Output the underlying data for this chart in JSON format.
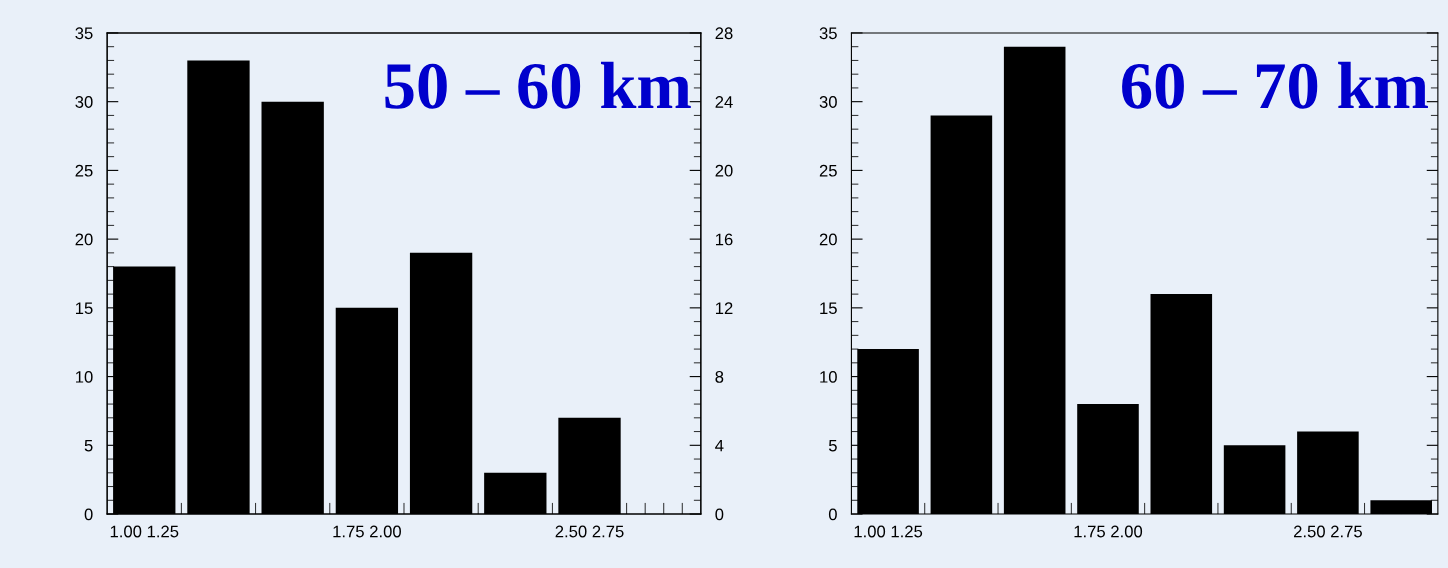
{
  "chart_data": [
    {
      "type": "bar",
      "title": "50 – 60 km",
      "categories": [
        "1.00 1.25",
        null,
        null,
        "1.75 2.00",
        null,
        null,
        "2.50 2.75",
        null
      ],
      "series": [
        {
          "color": "#000000",
          "values": [
            18,
            33,
            30,
            15,
            19,
            3,
            7,
            0
          ]
        }
      ],
      "ylim": [
        0,
        35
      ],
      "yticks": [
        0,
        5,
        10,
        15,
        20,
        25,
        30,
        35
      ],
      "y2lim": [
        0,
        28
      ],
      "y2ticks": [
        0,
        4,
        8,
        12,
        16,
        20,
        24,
        28
      ],
      "grid": false,
      "legend": false
    },
    {
      "type": "bar",
      "title": "60 – 70 km",
      "categories": [
        "1.00 1.25",
        null,
        null,
        "1.75 2.00",
        null,
        null,
        "2.50 2.75",
        null
      ],
      "series": [
        {
          "color": "#000000",
          "values": [
            12,
            29,
            34,
            8,
            16,
            5,
            6,
            1
          ]
        }
      ],
      "ylim": [
        0,
        35
      ],
      "yticks": [
        0,
        5,
        10,
        15,
        20,
        25,
        30,
        35
      ],
      "grid": false,
      "legend": false
    }
  ]
}
